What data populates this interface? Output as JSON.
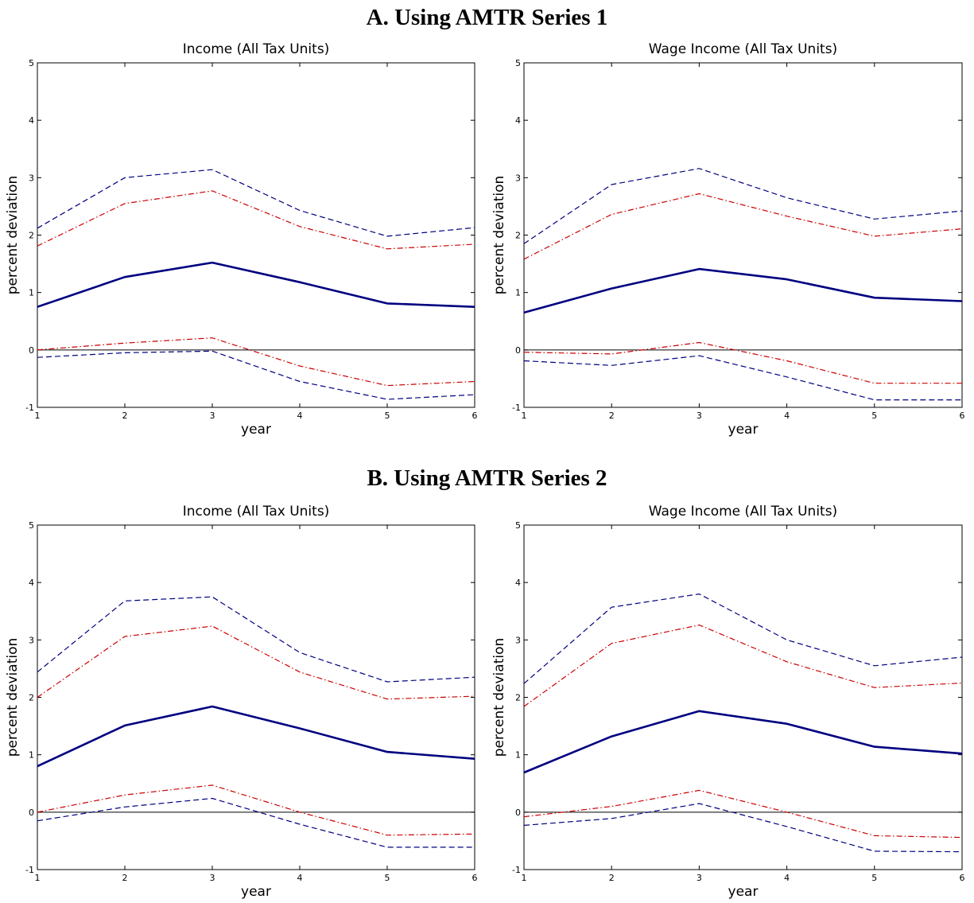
{
  "figure": {
    "panel_a_title": "A. Using AMTR Series 1",
    "panel_b_title": "B. Using AMTR Series 2"
  },
  "colors": {
    "estimate": "#000080",
    "band_dashed": "#000080",
    "band_dashdot": "#cc0000",
    "zero_line": "#000000"
  },
  "chart_data": [
    {
      "type": "line",
      "panel": "A",
      "title": "Income (All Tax Units)",
      "xlabel": "year",
      "ylabel": "percent deviation",
      "xlim": [
        1,
        6
      ],
      "ylim": [
        -1,
        5
      ],
      "xticks": [
        1,
        2,
        3,
        4,
        5,
        6
      ],
      "yticks": [
        -1,
        0,
        1,
        2,
        3,
        4,
        5
      ],
      "grid": false,
      "x": [
        1,
        2,
        3,
        4,
        5,
        6
      ],
      "series": [
        {
          "style": "solid",
          "values": [
            0.75,
            1.27,
            1.52,
            1.18,
            0.81,
            0.75
          ]
        },
        {
          "style": "dashed",
          "values": [
            2.12,
            3.0,
            3.14,
            2.43,
            1.98,
            2.13
          ]
        },
        {
          "style": "dashdot",
          "values": [
            1.81,
            2.55,
            2.77,
            2.15,
            1.76,
            1.84
          ]
        },
        {
          "style": "dashdot",
          "values": [
            0.0,
            0.12,
            0.21,
            -0.28,
            -0.62,
            -0.55
          ]
        },
        {
          "style": "dashed",
          "values": [
            -0.13,
            -0.05,
            -0.02,
            -0.55,
            -0.86,
            -0.78
          ]
        }
      ]
    },
    {
      "type": "line",
      "panel": "A",
      "title": "Wage Income (All Tax Units)",
      "xlabel": "year",
      "ylabel": "percent deviation",
      "xlim": [
        1,
        6
      ],
      "ylim": [
        -1,
        5
      ],
      "xticks": [
        1,
        2,
        3,
        4,
        5,
        6
      ],
      "yticks": [
        -1,
        0,
        1,
        2,
        3,
        4,
        5
      ],
      "grid": false,
      "x": [
        1,
        2,
        3,
        4,
        5,
        6
      ],
      "series": [
        {
          "style": "solid",
          "values": [
            0.65,
            1.07,
            1.41,
            1.23,
            0.91,
            0.85
          ]
        },
        {
          "style": "dashed",
          "values": [
            1.85,
            2.88,
            3.16,
            2.65,
            2.28,
            2.42
          ]
        },
        {
          "style": "dashdot",
          "values": [
            1.58,
            2.36,
            2.72,
            2.33,
            1.98,
            2.11
          ]
        },
        {
          "style": "dashdot",
          "values": [
            -0.04,
            -0.07,
            0.13,
            -0.19,
            -0.58,
            -0.58
          ]
        },
        {
          "style": "dashed",
          "values": [
            -0.19,
            -0.27,
            -0.1,
            -0.47,
            -0.87,
            -0.87
          ]
        }
      ]
    },
    {
      "type": "line",
      "panel": "B",
      "title": "Income (All Tax Units)",
      "xlabel": "year",
      "ylabel": "percent deviation",
      "xlim": [
        1,
        6
      ],
      "ylim": [
        -1,
        5
      ],
      "xticks": [
        1,
        2,
        3,
        4,
        5,
        6
      ],
      "yticks": [
        -1,
        0,
        1,
        2,
        3,
        4,
        5
      ],
      "grid": false,
      "x": [
        1,
        2,
        3,
        4,
        5,
        6
      ],
      "series": [
        {
          "style": "solid",
          "values": [
            0.8,
            1.51,
            1.84,
            1.46,
            1.05,
            0.93
          ]
        },
        {
          "style": "dashed",
          "values": [
            2.44,
            3.68,
            3.75,
            2.78,
            2.27,
            2.35
          ]
        },
        {
          "style": "dashdot",
          "values": [
            2.0,
            3.06,
            3.24,
            2.44,
            1.97,
            2.02
          ]
        },
        {
          "style": "dashdot",
          "values": [
            0.0,
            0.3,
            0.47,
            0.0,
            -0.4,
            -0.38
          ]
        },
        {
          "style": "dashed",
          "values": [
            -0.15,
            0.09,
            0.24,
            -0.21,
            -0.61,
            -0.61
          ]
        }
      ]
    },
    {
      "type": "line",
      "panel": "B",
      "title": "Wage Income (All Tax Units)",
      "xlabel": "year",
      "ylabel": "percent deviation",
      "xlim": [
        1,
        6
      ],
      "ylim": [
        -1,
        5
      ],
      "xticks": [
        1,
        2,
        3,
        4,
        5,
        6
      ],
      "yticks": [
        -1,
        0,
        1,
        2,
        3,
        4,
        5
      ],
      "grid": false,
      "x": [
        1,
        2,
        3,
        4,
        5,
        6
      ],
      "series": [
        {
          "style": "solid",
          "values": [
            0.69,
            1.32,
            1.76,
            1.54,
            1.14,
            1.02
          ]
        },
        {
          "style": "dashed",
          "values": [
            2.24,
            3.57,
            3.8,
            3.0,
            2.55,
            2.7
          ]
        },
        {
          "style": "dashdot",
          "values": [
            1.84,
            2.94,
            3.26,
            2.62,
            2.17,
            2.25
          ]
        },
        {
          "style": "dashdot",
          "values": [
            -0.08,
            0.1,
            0.38,
            0.0,
            -0.41,
            -0.44
          ]
        },
        {
          "style": "dashed",
          "values": [
            -0.23,
            -0.11,
            0.15,
            -0.25,
            -0.68,
            -0.69
          ]
        }
      ]
    }
  ]
}
